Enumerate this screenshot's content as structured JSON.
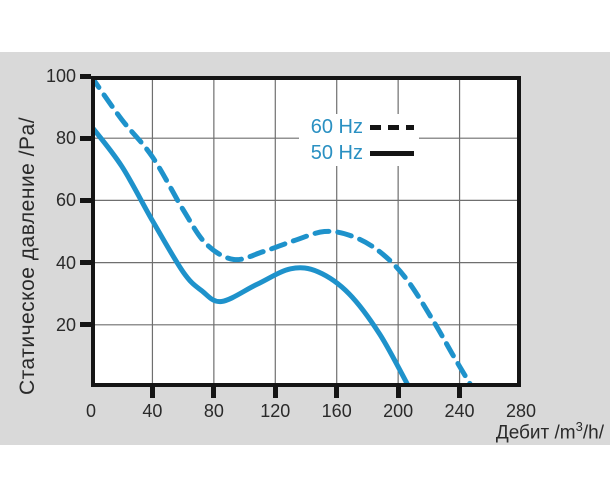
{
  "colors": {
    "page_bg": "#ffffff",
    "panel_bg": "#d9d9d9",
    "plot_bg": "#ffffff",
    "curve": "#1e92cb",
    "legend_text": "#2a90c2",
    "grid": "#6f6f6f",
    "axis": "#151515",
    "label_text": "#2a2a2a"
  },
  "chart_data": {
    "type": "line",
    "title": "",
    "ylabel": "Статическое давление /Pa/",
    "xlabel": "Дебит /m³/h/",
    "xlabel_parts": {
      "prefix": "Дебит /m",
      "sup": "3",
      "suffix": "/h/"
    },
    "xlim": [
      0,
      280
    ],
    "ylim": [
      0,
      100
    ],
    "x_ticks": [
      0,
      40,
      80,
      120,
      160,
      200,
      240,
      280
    ],
    "y_ticks": [
      20,
      40,
      60,
      80,
      100
    ],
    "grid": true,
    "legend_position": "top-right-inside",
    "series": [
      {
        "name": "60 Hz",
        "style": "dashed",
        "points": [
          [
            0,
            100
          ],
          [
            20,
            86
          ],
          [
            40,
            74
          ],
          [
            60,
            57
          ],
          [
            75,
            46
          ],
          [
            93,
            41
          ],
          [
            112,
            43.5
          ],
          [
            132,
            47
          ],
          [
            152,
            50
          ],
          [
            170,
            48.5
          ],
          [
            188,
            43.5
          ],
          [
            205,
            35
          ],
          [
            222,
            22
          ],
          [
            236,
            10
          ],
          [
            248,
            0
          ]
        ]
      },
      {
        "name": "50 Hz",
        "style": "solid",
        "points": [
          [
            0,
            84
          ],
          [
            20,
            71
          ],
          [
            40,
            53.5
          ],
          [
            60,
            37
          ],
          [
            72,
            31
          ],
          [
            85,
            27.5
          ],
          [
            108,
            33
          ],
          [
            130,
            38
          ],
          [
            148,
            37
          ],
          [
            168,
            30
          ],
          [
            188,
            17
          ],
          [
            207,
            0
          ]
        ]
      }
    ]
  }
}
